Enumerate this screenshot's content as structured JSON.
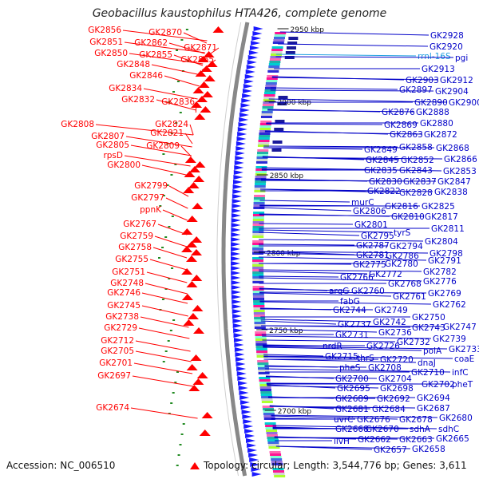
{
  "title": "Geobacillus kaustophilus HTA426, complete genome",
  "accession": "Accession: NC_006510",
  "topology": "Topology: circular; Length: 3,544,776 bp; Genes: 3,611",
  "colors": {
    "left_label": "#ff0000",
    "right_label": "#0000c8",
    "rrna_label": "#20a0e0",
    "backbone": "#888888",
    "reverse_arrow": "#ff0000",
    "forward_arrow": "#1a1aff",
    "gc_tick": "#228b22"
  },
  "scale_labels": [
    "2950 kbp",
    "2900 kbp",
    "2850 kbp",
    "2800 kbp",
    "2750 kbp",
    "2700 kbp"
  ],
  "left_genes": [
    "GK2856",
    "GK2870",
    "GK2851",
    "GK2862",
    "GK2871",
    "GK2850",
    "GK2855",
    "GK2865",
    "GK2848",
    "GK2846",
    "GK2834",
    "GK2832",
    "GK2836",
    "GK2808",
    "GK2824",
    "GK2807",
    "GK2821",
    "GK2805",
    "GK2809",
    "rpsD",
    "GK2800",
    "GK2799",
    "GK2797",
    "ppnK",
    "GK2767",
    "GK2759",
    "GK2758",
    "GK2755",
    "GK2751",
    "GK2748",
    "GK2746",
    "GK2745",
    "GK2738",
    "GK2729",
    "GK2712",
    "GK2705",
    "GK2701",
    "GK2697",
    "GK2674"
  ],
  "right_genes": [
    "GK2928",
    "GK2920",
    "rrnl-16S",
    "pgi",
    "GK2913",
    "GK2903",
    "GK2912",
    "GK2897",
    "GK2904",
    "GK2890",
    "GK2900",
    "GK2876",
    "GK2888",
    "GK2869",
    "GK2880",
    "GK2863",
    "GK2872",
    "GK2849",
    "GK2858",
    "GK2868",
    "GK2845",
    "GK2852",
    "GK2866",
    "GK2835",
    "GK2843",
    "GK2853",
    "GK2830",
    "GK2837",
    "GK2847",
    "GK2822",
    "GK2828",
    "GK2838",
    "murC",
    "GK2816",
    "GK2825",
    "GK2806",
    "GK2810",
    "GK2817",
    "GK2801",
    "GK2811",
    "GK2795",
    "tyrS",
    "GK2804",
    "GK2787",
    "GK2794",
    "GK2781",
    "GK2786",
    "GK2798",
    "GK2775",
    "GK2780",
    "GK2791",
    "GK2772",
    "GK2782",
    "GK2766",
    "GK2768",
    "GK2776",
    "argG",
    "GK2760",
    "GK2769",
    "fabG",
    "GK2761",
    "GK2762",
    "GK2744",
    "GK2749",
    "GK2750",
    "GK2737",
    "GK2742",
    "GK2743",
    "GK2747",
    "GK2731",
    "GK2736",
    "GK2739",
    "GK2732",
    "nrdR",
    "GK2726",
    "polA",
    "GK2733",
    "GK2715",
    "thrS",
    "GK2720",
    "dnaJ",
    "coaE",
    "pheS",
    "GK2708",
    "GK2710",
    "infC",
    "GK2700",
    "GK2704",
    "GK2702",
    "pheT",
    "GK2695",
    "GK2698",
    "GK2689",
    "GK2692",
    "GK2694",
    "GK2681",
    "GK2684",
    "GK2687",
    "uvrC",
    "GK2676",
    "GK2678",
    "GK2680",
    "GK2668",
    "GK2670",
    "sdhA",
    "sdhC",
    "GK2662",
    "GK2663",
    "GK2665",
    "ilvH",
    "GK2657",
    "GK2658"
  ]
}
